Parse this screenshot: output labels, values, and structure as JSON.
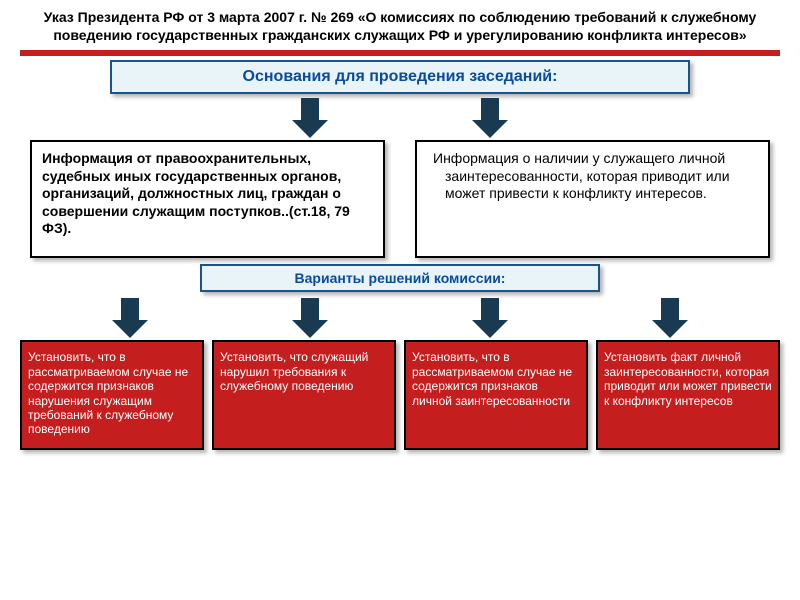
{
  "title": "Указ Президента РФ от 3 марта 2007 г. № 269\n«О комиссиях по соблюдению требований к служебному поведению государственных гражданских служащих РФ и урегулированию конфликта интересов»",
  "header": "Основания для проведения заседаний:",
  "left_info": "Информация от правоохранительных, судебных иных государственных органов, организаций, должностных лиц, граждан о  совершении служащим поступков..(ст.18, 79 ФЗ).",
  "right_info": "Информация о наличии у служащего личной заинтересованности, которая приводит или может привести к конфликту интересов.",
  "sub_header": "Варианты решений комиссии:",
  "decisions": [
    "Установить, что в рассматриваемом случае не содержится признаков нарушения служащим требований к служебному поведению",
    "Установить, что служащий нарушил требования к служебному поведению",
    "Установить, что в рассматриваемом случае не содержится признаков личной заинтересованности",
    "Установить факт личной заинтересованности, которая приводит или может привести к конфликту интересов"
  ],
  "colors": {
    "red": "#c41e1e",
    "dark_navy": "#1a3a52",
    "blue_border": "#1a5490",
    "blue_bg": "#e8f4f8",
    "blue_text": "#0a4a9e"
  }
}
